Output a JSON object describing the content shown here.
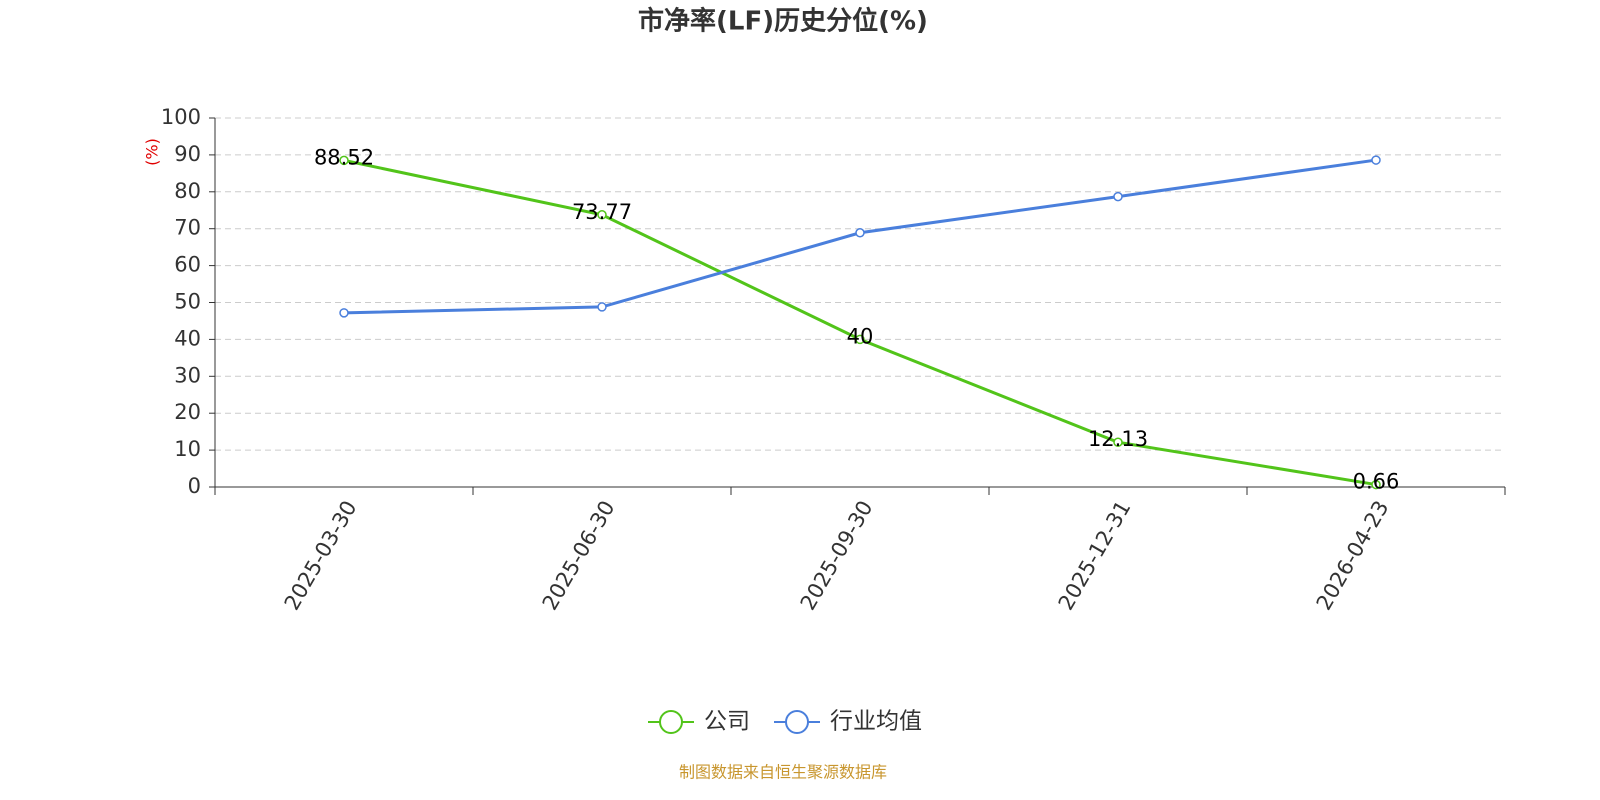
{
  "chart_data": {
    "type": "line",
    "title": "市净率(LF)历史分位(%)",
    "y_label": "(%)",
    "source": "制图数据来自恒生聚源数据库",
    "categories": [
      "2025-03-30",
      "2025-06-30",
      "2025-09-30",
      "2025-12-31",
      "2026-04-23"
    ],
    "series": [
      {
        "name": "公司",
        "color": "#52c41a",
        "values": [
          88.52,
          73.77,
          40,
          12.13,
          0.66
        ],
        "labels": true
      },
      {
        "name": "行业均值",
        "color": "#4a7fdc",
        "values": [
          47.2,
          48.8,
          68.9,
          78.7,
          88.6
        ],
        "labels": false
      }
    ],
    "ylim": [
      0,
      100
    ],
    "yticks": [
      0,
      10,
      20,
      30,
      40,
      50,
      60,
      70,
      80,
      90,
      100
    ],
    "grid": true,
    "legend": "bottom"
  }
}
